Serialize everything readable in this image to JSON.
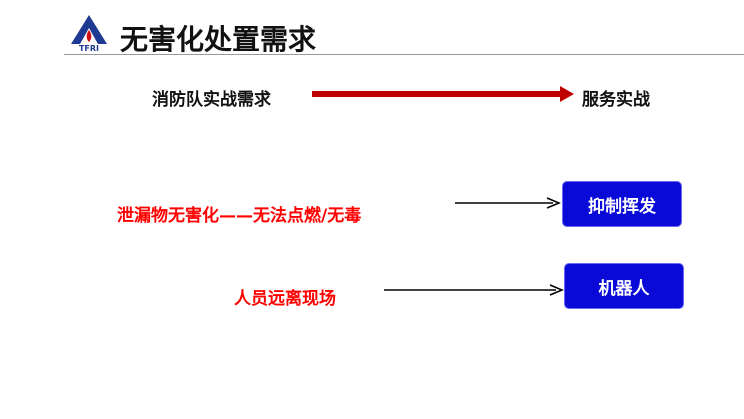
{
  "header": {
    "title": "无害化处置需求",
    "logo_text": "TFRI"
  },
  "row1": {
    "left": "消防队实战需求",
    "right": "服务实战",
    "arrow_color": "#c00000"
  },
  "row2": {
    "left": "泄漏物无害化——无法点燃/无毒",
    "box": "抑制挥发"
  },
  "row3": {
    "left": "人员远离现场",
    "box": "机器人"
  },
  "colors": {
    "red_text": "#ff0000",
    "box": "#0a0ad8"
  }
}
